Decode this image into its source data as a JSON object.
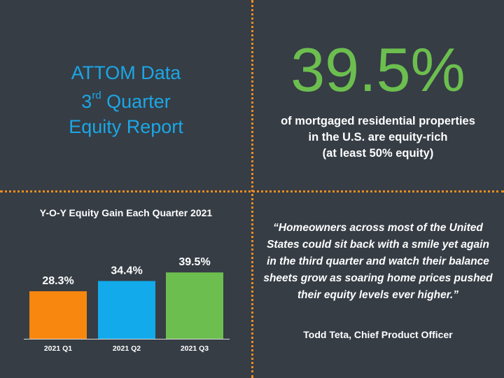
{
  "header": {
    "line1": "ATTOM Data",
    "line2_num": "3",
    "line2_sup": "rd",
    "line2_rest": " Quarter",
    "line3": "Equity Report"
  },
  "stat": {
    "value": "39.5%",
    "desc_line1": "of mortgaged residential properties",
    "desc_line2": "in the U.S. are equity-rich",
    "desc_line3": "(at least 50% equity)"
  },
  "quote": {
    "text": "“Homeowners across most of the United States could sit back with a smile yet again in the third quarter and watch their balance sheets grow as soaring home prices pushed their equity levels ever higher.”",
    "attribution": "Todd Teta, Chief Product Officer"
  },
  "colors": {
    "background": "#363d45",
    "title_blue": "#1ba7e6",
    "stat_green": "#6cbf4f",
    "divider_orange": "#f08c1e"
  },
  "chart_data": {
    "type": "bar",
    "title": "Y-O-Y Equity Gain Each Quarter 2021",
    "categories": [
      "2021 Q1",
      "2021 Q2",
      "2021 Q3"
    ],
    "values": [
      28.3,
      34.4,
      39.5
    ],
    "data_labels": [
      "28.3%",
      "34.4%",
      "39.5%"
    ],
    "bar_colors": [
      "#f7870f",
      "#12aaeb",
      "#6cbf4f"
    ],
    "xlabel": "",
    "ylabel": "",
    "ylim": [
      0,
      45
    ],
    "grid": false,
    "legend": "none"
  }
}
